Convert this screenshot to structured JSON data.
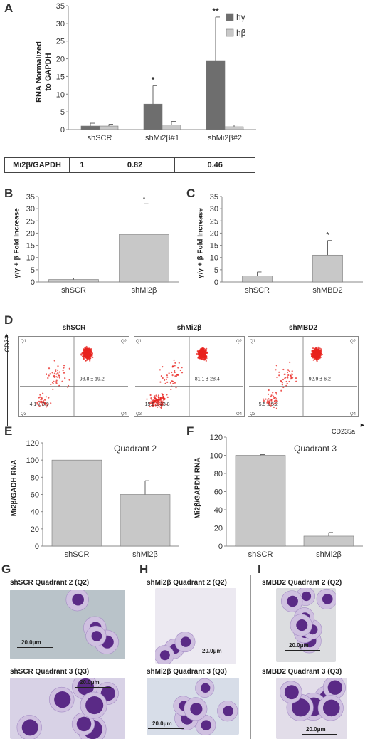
{
  "panels": {
    "A": "A",
    "B": "B",
    "C": "C",
    "D": "D",
    "E": "E",
    "F": "F",
    "G": "G",
    "H": "H",
    "I": "I"
  },
  "panelA": {
    "ylabel_line1": "RNA Normalized",
    "ylabel_line2": "to GAPDH",
    "legend": [
      "hγ",
      "hβ"
    ],
    "sig": [
      "*",
      "**"
    ]
  },
  "table": {
    "header": "Mi2β/GAPDH",
    "values": [
      "1",
      "0.82",
      "0.46"
    ]
  },
  "panelB": {
    "ylabel": "γ/γ + β Fold Increase",
    "sig": "*"
  },
  "panelC": {
    "ylabel": "γ/γ + β Fold Increase",
    "sig": "*"
  },
  "panelD": {
    "ylabel": "CD71",
    "xlabel": "CD235a",
    "plots": [
      {
        "title": "shSCR",
        "q2": "93.8 ± 19.2",
        "q3": "4.1 ± 3.9"
      },
      {
        "title": "shMi2β",
        "q2": "81.1 ± 28.4",
        "q3": "15.8 ± 23.8"
      },
      {
        "title": "shMBD2",
        "q2": "92.9 ± 6.2",
        "q3": "5.5 ± 5.2"
      }
    ],
    "quadrants": [
      "Q1",
      "Q2",
      "Q3",
      "Q4"
    ]
  },
  "panelE": {
    "title": "Quadrant 2",
    "ylabel": "Mi2β/GADH RNA"
  },
  "panelF": {
    "title": "Quadrant 3",
    "ylabel": "Mi2β/GAPDH RNA"
  },
  "panelG": {
    "top": "shSCR Quadrant 2 (Q2)",
    "bottom": "shSCR Quadrant 3 (Q3)",
    "scale_top": "20.0μm",
    "scale_bottom": "20.0μm"
  },
  "panelH": {
    "top": "shMi2β Quadrant 2 (Q2)",
    "bottom": "shMi2β Quadrant 3 (Q3)",
    "scale_top": "20.0μm",
    "scale_bottom": "20.0μm"
  },
  "panelI": {
    "top": "sMBD2 Quadrant 2 (Q2)",
    "bottom": "sMBD2 Quadrant 3 (Q3)",
    "scale_top": "20.0μm",
    "scale_bottom": "20.0μm"
  },
  "colors": {
    "dark": "#6e6e6e",
    "light": "#c8c8c8",
    "red": "#e8231e",
    "stain": "#5a2a86"
  },
  "chart_data": [
    {
      "id": "A",
      "type": "bar",
      "categories": [
        "shSCR",
        "shMi2β#1",
        "shMi2β#2"
      ],
      "series": [
        {
          "name": "hγ",
          "values": [
            1,
            7.2,
            19.5
          ],
          "errors": [
            0.8,
            5.2,
            12.3
          ]
        },
        {
          "name": "hβ",
          "values": [
            1,
            1.3,
            0.8
          ],
          "errors": [
            0.5,
            1.0,
            0.5
          ]
        }
      ],
      "ylim": [
        0,
        35
      ],
      "yticks": [
        0,
        5,
        10,
        15,
        20,
        25,
        30,
        35
      ],
      "legend": "top-right"
    },
    {
      "id": "B",
      "type": "bar",
      "categories": [
        "shSCR",
        "shMi2β"
      ],
      "values": [
        1,
        19.5
      ],
      "errors": [
        0.6,
        12.5
      ],
      "ylim": [
        0,
        35
      ],
      "yticks": [
        0,
        5,
        10,
        15,
        20,
        25,
        30,
        35
      ]
    },
    {
      "id": "C",
      "type": "bar",
      "categories": [
        "shSCR",
        "shMBD2"
      ],
      "values": [
        2.5,
        11
      ],
      "errors": [
        1.6,
        6
      ],
      "ylim": [
        0,
        35
      ],
      "yticks": [
        0,
        5,
        10,
        15,
        20,
        25,
        30,
        35
      ]
    },
    {
      "id": "E",
      "type": "bar",
      "categories": [
        "shSCR",
        "shMi2β"
      ],
      "values": [
        100,
        60
      ],
      "errors": [
        0,
        16
      ],
      "ylim": [
        0,
        120
      ],
      "yticks": [
        0,
        20,
        40,
        60,
        80,
        100,
        120
      ]
    },
    {
      "id": "F",
      "type": "bar",
      "categories": [
        "shSCR",
        "shMi2β"
      ],
      "values": [
        100,
        11
      ],
      "errors": [
        0.8,
        4
      ],
      "ylim": [
        0,
        120
      ],
      "yticks": [
        0,
        20,
        40,
        60,
        80,
        100,
        120
      ]
    }
  ]
}
